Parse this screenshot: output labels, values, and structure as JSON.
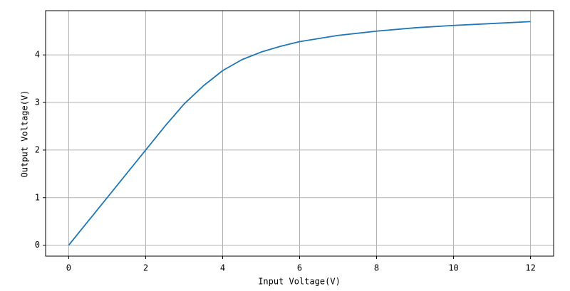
{
  "chart_data": {
    "type": "line",
    "x": [
      0,
      0.5,
      1,
      1.5,
      2,
      2.5,
      3,
      3.5,
      4,
      4.5,
      5,
      5.5,
      6,
      7,
      8,
      9,
      10,
      11,
      12
    ],
    "series": [
      {
        "color": "#1f77b4",
        "values": [
          0,
          0.5,
          1,
          1.5,
          2,
          2.5,
          2.97,
          3.35,
          3.67,
          3.9,
          4.06,
          4.18,
          4.28,
          4.41,
          4.5,
          4.57,
          4.62,
          4.66,
          4.7
        ]
      }
    ],
    "xlabel": "Input Voltage(V)",
    "ylabel": "Output Voltage(V)",
    "xlim": [
      -0.6,
      12.6
    ],
    "ylim": [
      -0.23,
      4.93
    ],
    "xticks": [
      0,
      2,
      4,
      6,
      8,
      10,
      12
    ],
    "yticks": [
      0,
      1,
      2,
      3,
      4
    ],
    "grid": true
  }
}
